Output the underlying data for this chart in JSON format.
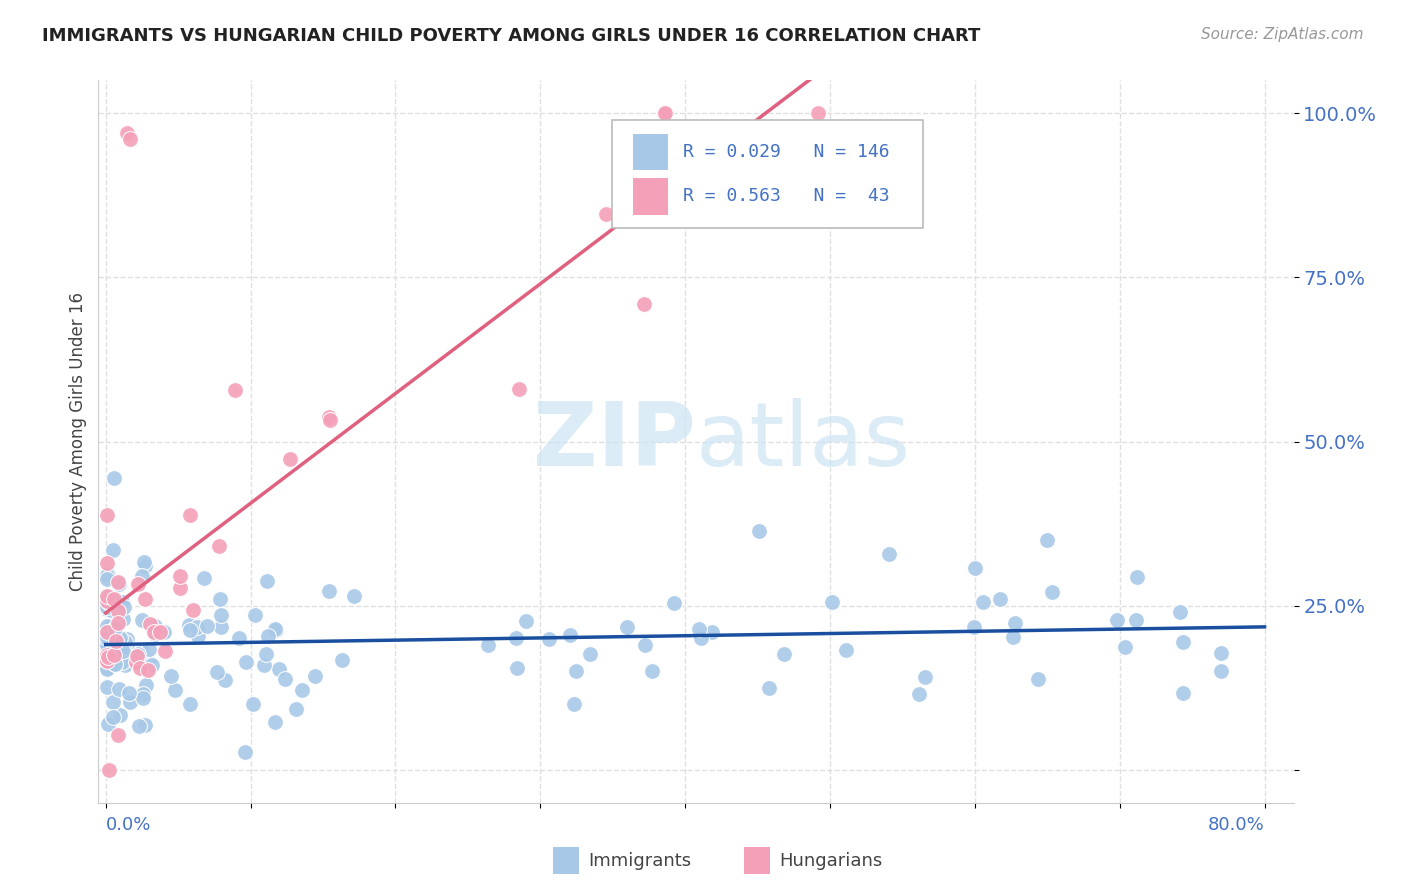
{
  "title": "IMMIGRANTS VS HUNGARIAN CHILD POVERTY AMONG GIRLS UNDER 16 CORRELATION CHART",
  "source": "Source: ZipAtlas.com",
  "ylabel": "Child Poverty Among Girls Under 16",
  "immigrants_color": "#a8c8e8",
  "hungarians_color": "#f4a0b8",
  "immigrants_line_color": "#1a4fa0",
  "hungarians_line_color": "#e06080",
  "dashed_line_color": "#d0a0b0",
  "title_color": "#222222",
  "axis_label_color": "#4472c4",
  "source_color": "#999999",
  "background_color": "#ffffff",
  "grid_color": "#e0e0e0",
  "watermark_color": "#cce4f4",
  "legend_box_color": "#ffffff",
  "legend_border_color": "#cccccc"
}
